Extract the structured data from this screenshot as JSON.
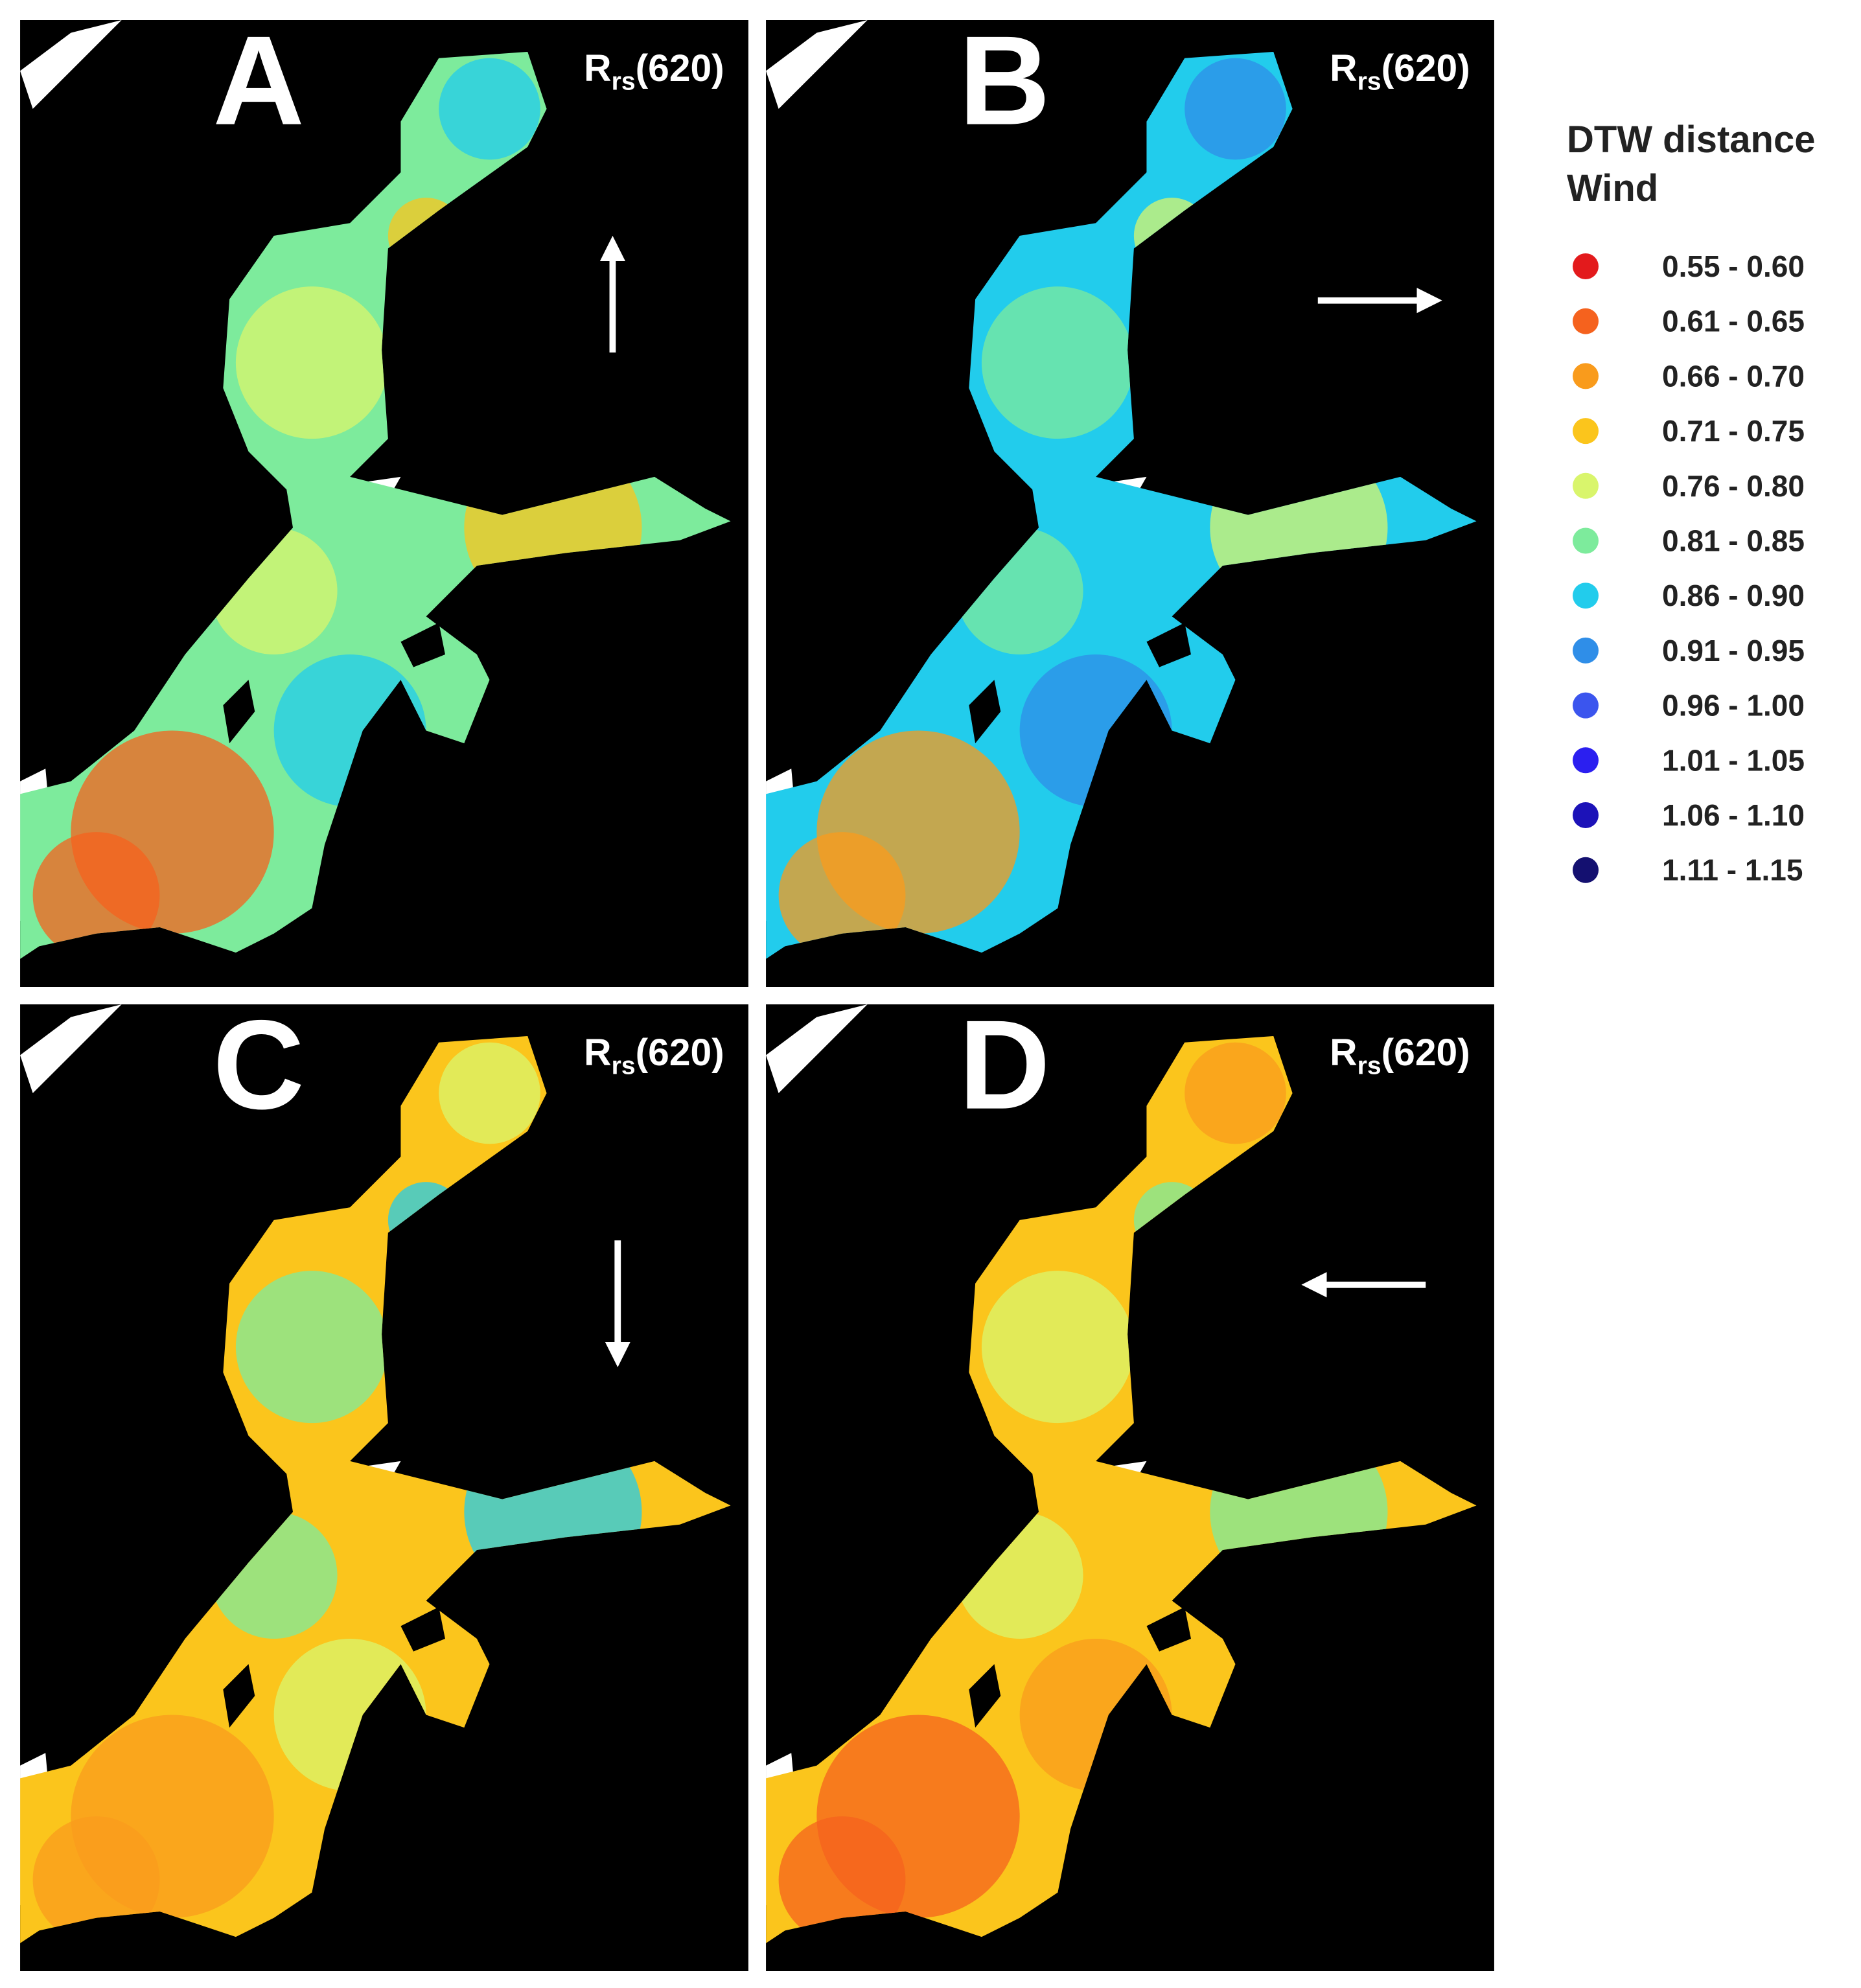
{
  "panels": [
    {
      "label": "A",
      "title": {
        "main": "R",
        "sub": "rs",
        "tail": "(620)"
      },
      "wind": "up"
    },
    {
      "label": "B",
      "title": {
        "main": "R",
        "sub": "rs",
        "tail": "(620)"
      },
      "wind": "right"
    },
    {
      "label": "C",
      "title": {
        "main": "R",
        "sub": "rs",
        "tail": "(620)"
      },
      "wind": "down"
    },
    {
      "label": "D",
      "title": {
        "main": "R",
        "sub": "rs",
        "tail": "(620)"
      },
      "wind": "left"
    }
  ],
  "legend": {
    "title": [
      "DTW distance",
      "Wind"
    ],
    "items": [
      {
        "label": "0.55 - 0.60",
        "color": "#e31a1c"
      },
      {
        "label": "0.61 - 0.65",
        "color": "#f5621e"
      },
      {
        "label": "0.66 - 0.70",
        "color": "#f99b1c"
      },
      {
        "label": "0.71 - 0.75",
        "color": "#fbc51c"
      },
      {
        "label": "0.76 - 0.80",
        "color": "#d9f56c"
      },
      {
        "label": "0.81 - 0.85",
        "color": "#7deb9c"
      },
      {
        "label": "0.86 - 0.90",
        "color": "#22ccec"
      },
      {
        "label": "0.91 - 0.95",
        "color": "#2f8ee8"
      },
      {
        "label": "0.96 - 1.00",
        "color": "#3b55ee"
      },
      {
        "label": "1.01 - 1.05",
        "color": "#2b1ff0"
      },
      {
        "label": "1.06 - 1.10",
        "color": "#1c12b8"
      },
      {
        "label": "1.11 - 1.15",
        "color": "#141070"
      }
    ]
  }
}
